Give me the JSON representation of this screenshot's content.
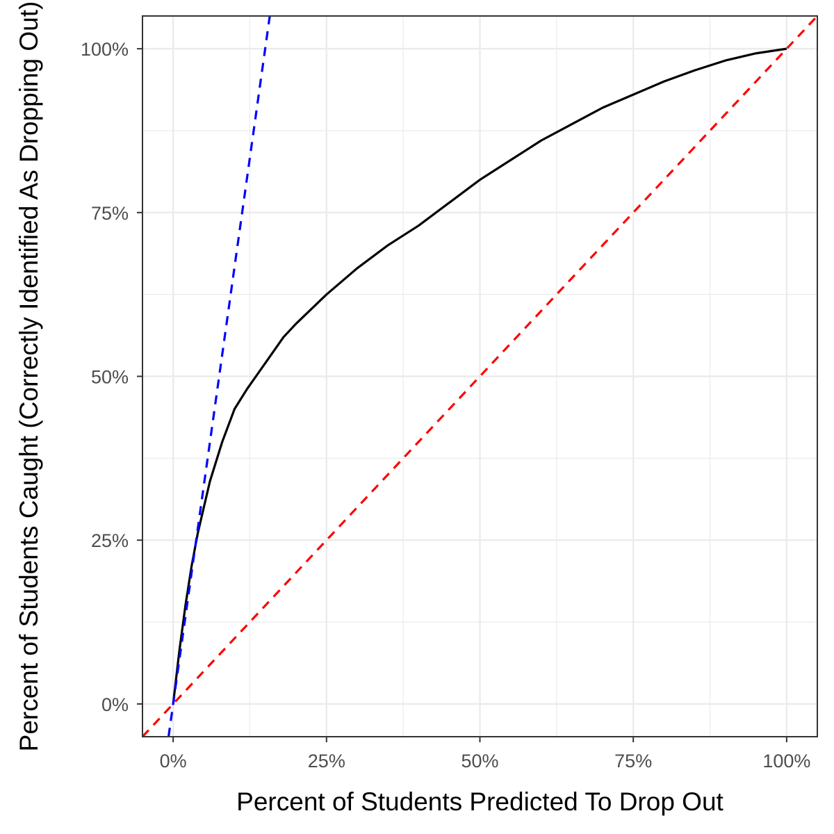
{
  "chart_data": {
    "type": "line",
    "title": "",
    "xlabel": "Percent of Students Predicted To Drop Out",
    "ylabel": "Percent of Students Caught (Correctly Identified As Dropping Out)",
    "xlim": [
      -0.05,
      1.05
    ],
    "ylim": [
      -0.05,
      1.05
    ],
    "x_ticks": [
      0,
      0.25,
      0.5,
      0.75,
      1.0
    ],
    "x_tick_labels": [
      "0%",
      "25%",
      "50%",
      "75%",
      "100%"
    ],
    "y_ticks": [
      0,
      0.25,
      0.5,
      0.75,
      1.0
    ],
    "y_tick_labels": [
      "0%",
      "25%",
      "50%",
      "75%",
      "100%"
    ],
    "grid": true,
    "legend": "none",
    "series": [
      {
        "style": "solid",
        "color": "#000000",
        "x": [
          0,
          0.01,
          0.02,
          0.03,
          0.04,
          0.05,
          0.06,
          0.08,
          0.1,
          0.12,
          0.15,
          0.18,
          0.2,
          0.25,
          0.3,
          0.35,
          0.4,
          0.45,
          0.5,
          0.55,
          0.6,
          0.65,
          0.7,
          0.75,
          0.8,
          0.85,
          0.9,
          0.95,
          1.0
        ],
        "y": [
          0,
          0.08,
          0.15,
          0.21,
          0.26,
          0.3,
          0.34,
          0.4,
          0.45,
          0.48,
          0.52,
          0.56,
          0.58,
          0.625,
          0.665,
          0.7,
          0.73,
          0.765,
          0.8,
          0.83,
          0.86,
          0.885,
          0.91,
          0.93,
          0.95,
          0.967,
          0.982,
          0.993,
          1.0
        ]
      },
      {
        "style": "dashed",
        "color": "#ff0000",
        "x": [
          -0.05,
          1.05
        ],
        "y": [
          -0.05,
          1.05
        ]
      },
      {
        "style": "dashed",
        "color": "#0000ff",
        "x": [
          -0.0075,
          0.1575
        ],
        "y": [
          -0.05,
          1.05
        ]
      }
    ]
  }
}
